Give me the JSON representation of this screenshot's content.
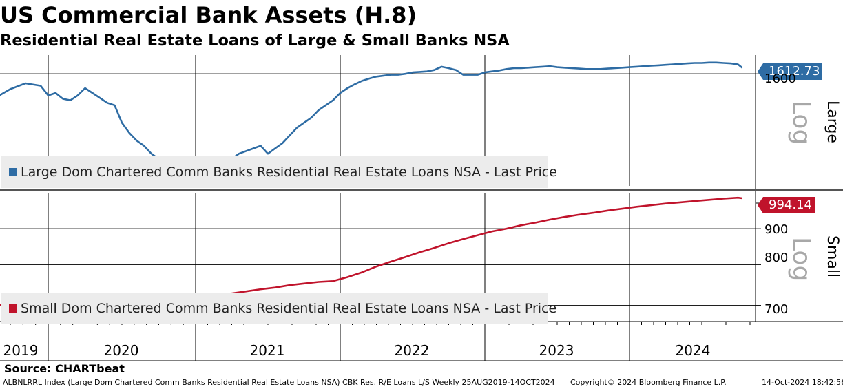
{
  "title": "US Commercial Bank Assets (H.8)",
  "subtitle": "Residential Real Estate Loans of Large & Small Banks NSA",
  "source": "Source: CHARTbeat",
  "footer": {
    "left": "ALBNLRRL Index (Large Dom Chartered Comm Banks Residential Real Estate Loans NSA) CBK Res. R/E Loans L/S  Weekly 25AUG2019-14OCT2024",
    "middle": "Copyright© 2024 Bloomberg Finance L.P.",
    "right": "14-Oct-2024 18:42:56"
  },
  "colors": {
    "large": "#2e6ca4",
    "small": "#c0132b",
    "legend_bg": "#ececec",
    "log_text": "#a8a8a8"
  },
  "chart_data": [
    {
      "type": "line",
      "panel": "Large",
      "scale": "Log",
      "grid": true,
      "legend": "bottom-left",
      "series": [
        {
          "name": "Large Dom Chartered Comm Banks Residential Real Estate Loans NSA - Last Price",
          "last_price": "1612.73",
          "x": [
            2019.65,
            2019.75,
            2019.85,
            2019.95,
            2020.0,
            2020.05,
            2020.1,
            2020.15,
            2020.2,
            2020.25,
            2020.3,
            2020.35,
            2020.4,
            2020.45,
            2020.5,
            2020.55,
            2020.6,
            2020.65,
            2020.7,
            2020.75,
            2020.8,
            2020.85,
            2020.9,
            2020.95,
            2021.0,
            2021.05,
            2021.1,
            2021.15,
            2021.2,
            2021.25,
            2021.3,
            2021.35,
            2021.4,
            2021.45,
            2021.5,
            2021.55,
            2021.6,
            2021.65,
            2021.7,
            2021.75,
            2021.8,
            2021.85,
            2021.9,
            2021.95,
            2022.0,
            2022.05,
            2022.1,
            2022.15,
            2022.2,
            2022.25,
            2022.3,
            2022.35,
            2022.4,
            2022.45,
            2022.5,
            2022.55,
            2022.6,
            2022.65,
            2022.7,
            2022.75,
            2022.8,
            2022.85,
            2022.9,
            2022.95,
            2023.0,
            2023.05,
            2023.1,
            2023.15,
            2023.2,
            2023.25,
            2023.3,
            2023.35,
            2023.4,
            2023.45,
            2023.5,
            2023.55,
            2023.6,
            2023.65,
            2023.7,
            2023.75,
            2023.8,
            2023.85,
            2023.9,
            2023.95,
            2024.0,
            2024.05,
            2024.1,
            2024.15,
            2024.2,
            2024.25,
            2024.3,
            2024.35,
            2024.4,
            2024.45,
            2024.5,
            2024.55,
            2024.6,
            2024.65,
            2024.7,
            2024.75,
            2024.78
          ],
          "values": [
            1550,
            1568,
            1580,
            1575,
            1555,
            1560,
            1548,
            1545,
            1555,
            1570,
            1560,
            1550,
            1540,
            1535,
            1500,
            1480,
            1465,
            1455,
            1440,
            1430,
            1415,
            1405,
            1395,
            1400,
            1392,
            1395,
            1400,
            1410,
            1420,
            1430,
            1440,
            1445,
            1450,
            1455,
            1440,
            1450,
            1460,
            1475,
            1490,
            1500,
            1510,
            1525,
            1535,
            1545,
            1560,
            1570,
            1578,
            1585,
            1590,
            1594,
            1596,
            1598,
            1598,
            1600,
            1603,
            1604,
            1605,
            1608,
            1615,
            1612,
            1608,
            1598,
            1598,
            1598,
            1603,
            1605,
            1607,
            1610,
            1612,
            1612,
            1613,
            1614,
            1615,
            1616,
            1614,
            1613,
            1612,
            1611,
            1610,
            1610,
            1610,
            1611,
            1612,
            1613,
            1614,
            1615,
            1616,
            1617,
            1618,
            1619,
            1620,
            1621,
            1622,
            1623,
            1623,
            1624,
            1624,
            1623,
            1622,
            1620,
            1612.73
          ]
        }
      ],
      "yticks": [
        1600
      ]
    },
    {
      "type": "line",
      "panel": "Small",
      "scale": "Log",
      "grid": true,
      "legend": "bottom-left",
      "series": [
        {
          "name": "Small Dom Chartered Comm Banks Residential Real Estate Loans NSA - Last Price",
          "last_price": "994.14",
          "x": [
            2019.65,
            2019.75,
            2019.85,
            2019.95,
            2020.05,
            2020.15,
            2020.25,
            2020.35,
            2020.45,
            2020.55,
            2020.65,
            2020.75,
            2020.85,
            2020.95,
            2021.05,
            2021.15,
            2021.25,
            2021.35,
            2021.45,
            2021.55,
            2021.65,
            2021.75,
            2021.85,
            2021.95,
            2022.05,
            2022.15,
            2022.25,
            2022.35,
            2022.45,
            2022.55,
            2022.65,
            2022.75,
            2022.85,
            2022.95,
            2023.05,
            2023.15,
            2023.25,
            2023.35,
            2023.45,
            2023.55,
            2023.65,
            2023.75,
            2023.85,
            2023.95,
            2024.05,
            2024.15,
            2024.25,
            2024.35,
            2024.45,
            2024.55,
            2024.65,
            2024.75,
            2024.78
          ],
          "values": [
            700,
            703,
            706,
            710,
            714,
            716,
            718,
            721,
            724,
            726,
            716,
            714,
            712,
            712,
            716,
            722,
            728,
            733,
            738,
            742,
            748,
            752,
            756,
            758,
            768,
            780,
            795,
            808,
            820,
            833,
            845,
            858,
            870,
            881,
            892,
            900,
            910,
            918,
            927,
            935,
            942,
            948,
            955,
            961,
            967,
            972,
            977,
            981,
            985,
            989,
            993,
            996,
            994.14
          ]
        }
      ],
      "yticks": [
        700,
        800,
        900
      ]
    }
  ],
  "x_axis": {
    "labels": [
      "2019",
      "2020",
      "2021",
      "2022",
      "2023",
      "2024"
    ]
  }
}
